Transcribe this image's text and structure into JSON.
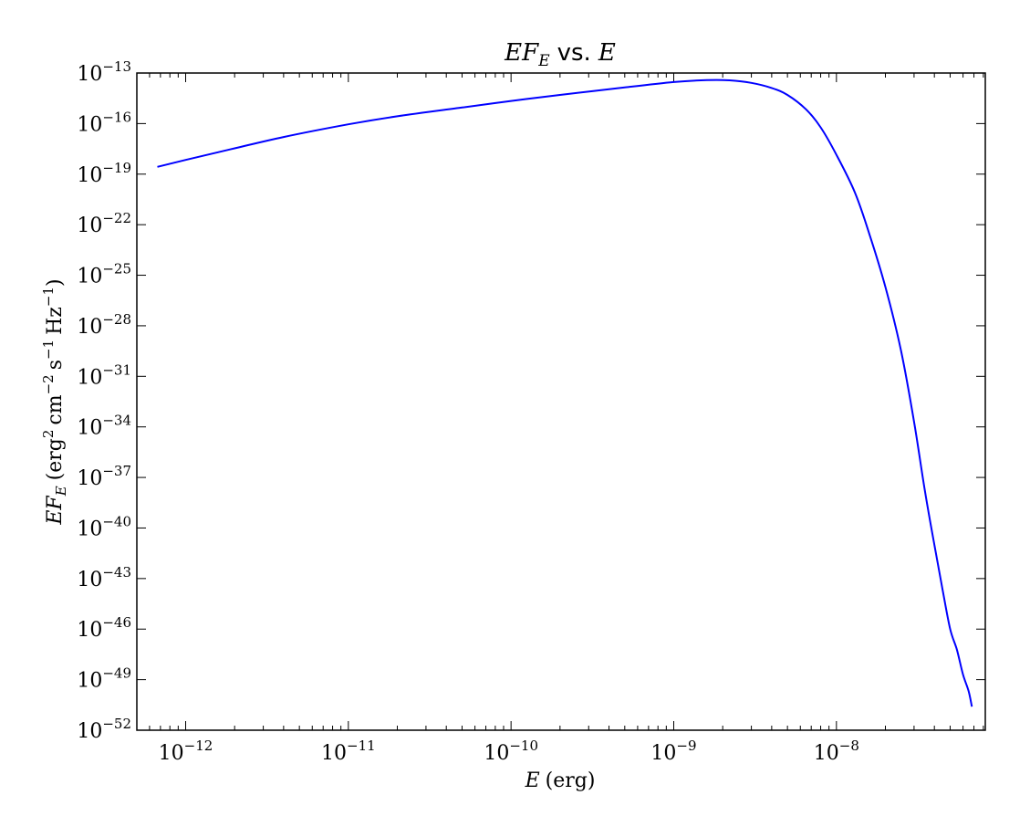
{
  "chart_data": {
    "type": "line",
    "title": {
      "left": "EF",
      "left_sub": "E",
      "middle": "vs.",
      "right": "E"
    },
    "xlabel": {
      "var": "E",
      "unit": "(erg)"
    },
    "ylabel": {
      "var": "EF",
      "var_sub": "E",
      "open": "(erg",
      "erg_exp": "2",
      "cm": "cm",
      "cm_exp": "−2",
      "s": "s",
      "s_exp": "−1",
      "hz": "Hz",
      "hz_exp": "−1",
      "close": ")"
    },
    "x_scale": "log",
    "y_scale": "log",
    "xlim_log10": [
      -12.3,
      -7.085
    ],
    "ylim_log10": [
      -52,
      -13
    ],
    "x_tick_labels": [
      {
        "base": "10",
        "exp": "−12",
        "log": -12
      },
      {
        "base": "10",
        "exp": "−11",
        "log": -11
      },
      {
        "base": "10",
        "exp": "−10",
        "log": -10
      },
      {
        "base": "10",
        "exp": "−9",
        "log": -9
      },
      {
        "base": "10",
        "exp": "−8",
        "log": -8
      }
    ],
    "y_tick_labels": [
      {
        "base": "10",
        "exp": "−13",
        "log": -13
      },
      {
        "base": "10",
        "exp": "−16",
        "log": -16
      },
      {
        "base": "10",
        "exp": "−19",
        "log": -19
      },
      {
        "base": "10",
        "exp": "−22",
        "log": -22
      },
      {
        "base": "10",
        "exp": "−25",
        "log": -25
      },
      {
        "base": "10",
        "exp": "−28",
        "log": -28
      },
      {
        "base": "10",
        "exp": "−31",
        "log": -31
      },
      {
        "base": "10",
        "exp": "−34",
        "log": -34
      },
      {
        "base": "10",
        "exp": "−37",
        "log": -37
      },
      {
        "base": "10",
        "exp": "−40",
        "log": -40
      },
      {
        "base": "10",
        "exp": "−43",
        "log": -43
      },
      {
        "base": "10",
        "exp": "−46",
        "log": -46
      },
      {
        "base": "10",
        "exp": "−49",
        "log": -49
      },
      {
        "base": "10",
        "exp": "−52",
        "log": -52
      }
    ],
    "grid": false,
    "series": [
      {
        "color": "#0000ff",
        "x": [
          6.7e-13,
          1e-12,
          2e-12,
          4e-12,
          1e-11,
          2e-11,
          5e-11,
          1e-10,
          2e-10,
          5e-10,
          1e-09,
          1.6e-09,
          2.2e-09,
          3e-09,
          4e-09,
          5e-09,
          6.5e-09,
          8e-09,
          1e-08,
          1.3e-08,
          1.6e-08,
          2e-08,
          2.5e-08,
          3e-08,
          3.5e-08,
          4e-08,
          4.5e-08,
          5e-08,
          5.5e-08,
          6e-08,
          6.5e-08,
          6.8e-08
        ],
        "y": [
          2.7e-19,
          7e-19,
          3.4e-18,
          1.6e-17,
          9e-17,
          2.7e-16,
          9e-16,
          2.2e-15,
          5e-15,
          1.4e-14,
          2.9e-14,
          3.8e-14,
          3.7e-14,
          2.6e-14,
          1.3e-14,
          5e-15,
          7e-16,
          6e-17,
          1.4e-18,
          8e-21,
          2.5e-23,
          2e-26,
          3e-30,
          2e-34,
          1.5e-38,
          1e-41,
          2e-44,
          1e-46,
          6e-48,
          2e-49,
          2e-50,
          2.5e-51
        ]
      }
    ]
  }
}
